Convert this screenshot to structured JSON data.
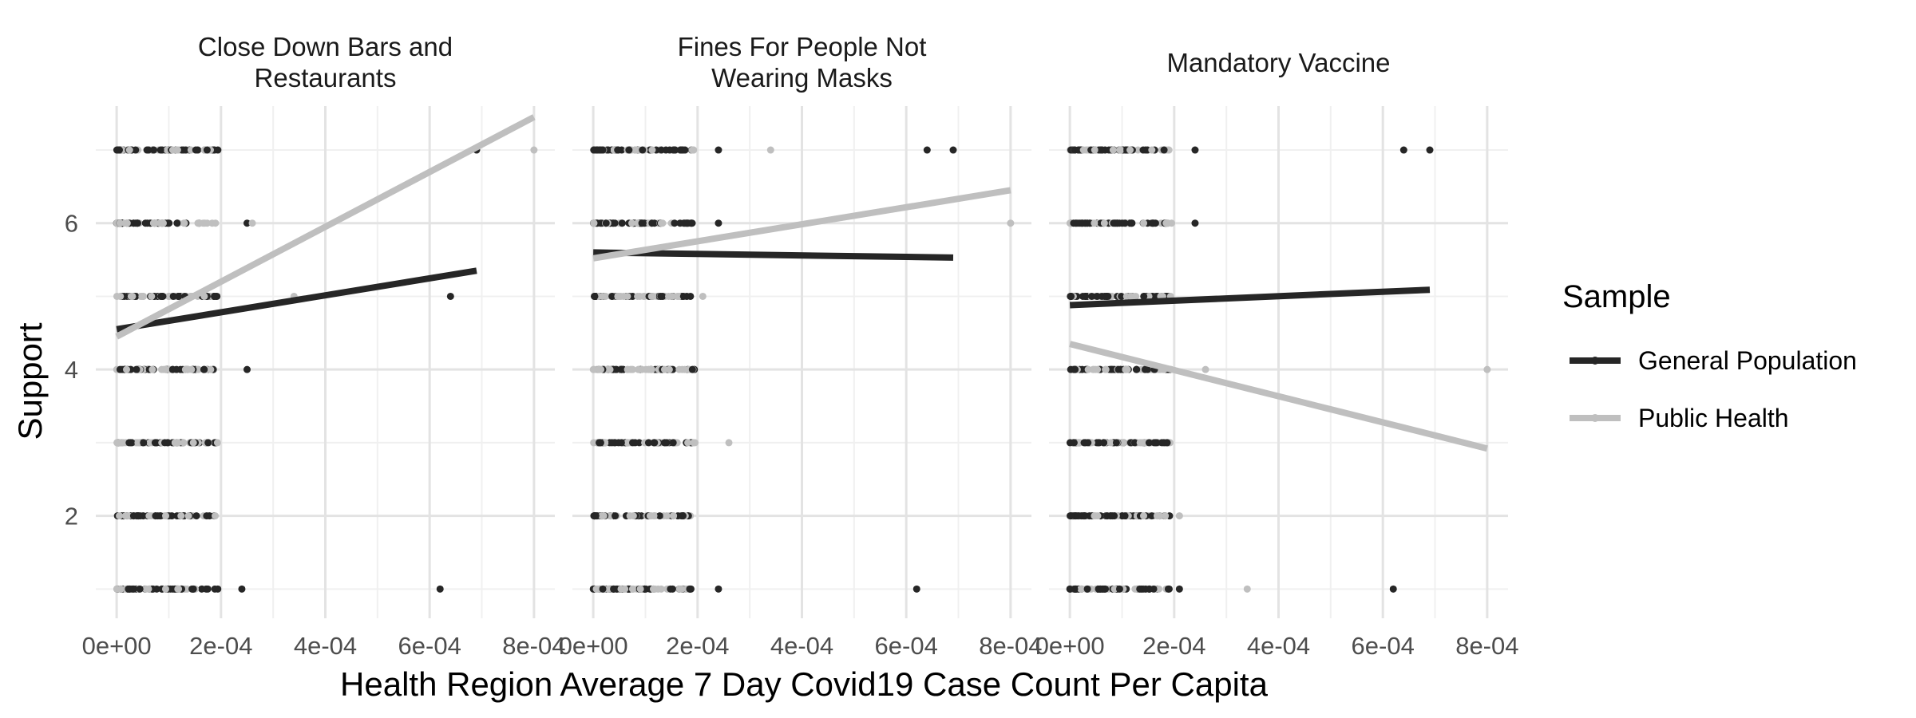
{
  "chart_data": {
    "type": "scatter",
    "xlabel": "Health Region Average 7 Day Covid19 Case Count Per Capita",
    "ylabel": "Support",
    "x_ticks": [
      {
        "value": 0,
        "label": "0e+00"
      },
      {
        "value": 0.0002,
        "label": "2e-04"
      },
      {
        "value": 0.0004,
        "label": "4e-04"
      },
      {
        "value": 0.0006,
        "label": "6e-04"
      },
      {
        "value": 0.0008,
        "label": "8e-04"
      }
    ],
    "y_ticks": [
      {
        "value": 2,
        "label": "2"
      },
      {
        "value": 4,
        "label": "4"
      },
      {
        "value": 6,
        "label": "6"
      }
    ],
    "xlim": [
      -4e-05,
      0.00084
    ],
    "ylim": [
      0.6,
      7.6
    ],
    "grid": true,
    "legend": {
      "title": "Sample",
      "position": "right",
      "entries": [
        {
          "key": "general",
          "label": "General Population",
          "color": "#262626"
        },
        {
          "key": "public",
          "label": "Public Health",
          "color": "#bfbfbf"
        }
      ]
    },
    "panels": [
      {
        "title_lines": [
          "Close Down Bars and",
          "Restaurants"
        ],
        "fits": {
          "general": {
            "x": [
              0,
              0.00069
            ],
            "y": [
              4.55,
              5.35
            ]
          },
          "public": {
            "x": [
              0,
              0.0008
            ],
            "y": [
              4.45,
              7.45
            ]
          }
        },
        "outliers": {
          "general": [
            [
              0.00069,
              7
            ],
            [
              0.00064,
              5
            ],
            [
              0.00062,
              1
            ],
            [
              0.00025,
              6
            ],
            [
              0.00025,
              4
            ],
            [
              0.00024,
              1
            ]
          ],
          "public": [
            [
              0.0008,
              7
            ],
            [
              0.00026,
              6
            ],
            [
              0.00034,
              5
            ]
          ]
        }
      },
      {
        "title_lines": [
          "Fines For People Not",
          "Wearing Masks"
        ],
        "fits": {
          "general": {
            "x": [
              0,
              0.00069
            ],
            "y": [
              5.6,
              5.53
            ]
          },
          "public": {
            "x": [
              0,
              0.0008
            ],
            "y": [
              5.52,
              6.45
            ]
          }
        },
        "outliers": {
          "general": [
            [
              0.00064,
              7
            ],
            [
              0.00069,
              7
            ],
            [
              0.00024,
              7
            ],
            [
              0.00024,
              6
            ],
            [
              0.00062,
              1
            ],
            [
              0.00024,
              1
            ]
          ],
          "public": [
            [
              0.00034,
              7
            ],
            [
              0.0008,
              6
            ],
            [
              0.00021,
              5
            ],
            [
              0.00026,
              3
            ]
          ]
        }
      },
      {
        "title_lines": [
          "Mandatory Vaccine"
        ],
        "fits": {
          "general": {
            "x": [
              0,
              0.00069
            ],
            "y": [
              4.88,
              5.09
            ]
          },
          "public": {
            "x": [
              0,
              0.0008
            ],
            "y": [
              4.35,
              2.92
            ]
          }
        },
        "outliers": {
          "general": [
            [
              0.00064,
              7
            ],
            [
              0.00069,
              7
            ],
            [
              0.00024,
              7
            ],
            [
              0.00024,
              6
            ],
            [
              0.00062,
              1
            ],
            [
              0.00021,
              1
            ]
          ],
          "public": [
            [
              0.00026,
              4
            ],
            [
              0.0008,
              4
            ],
            [
              0.00034,
              1
            ],
            [
              0.00021,
              2
            ]
          ]
        }
      }
    ]
  }
}
